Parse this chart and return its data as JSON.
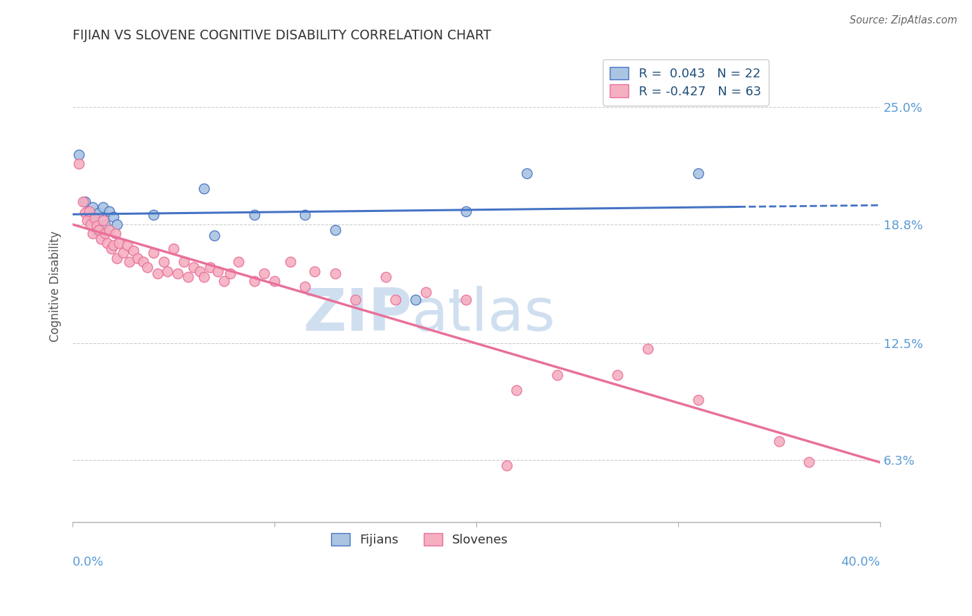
{
  "title": "FIJIAN VS SLOVENE COGNITIVE DISABILITY CORRELATION CHART",
  "source": "Source: ZipAtlas.com",
  "ylabel": "Cognitive Disability",
  "ytick_labels": [
    "6.3%",
    "12.5%",
    "18.8%",
    "25.0%"
  ],
  "ytick_values": [
    0.063,
    0.125,
    0.188,
    0.25
  ],
  "xlim": [
    0.0,
    0.4
  ],
  "ylim": [
    0.03,
    0.28
  ],
  "fijian_color": "#aac4e2",
  "slovene_color": "#f5afc0",
  "fijian_line_color": "#4472c4",
  "slovene_line_color": "#e8709a",
  "fijian_R": 0.043,
  "fijian_N": 22,
  "slovene_R": -0.427,
  "slovene_N": 63,
  "legend_text_color": "#1f4e79",
  "title_color": "#333333",
  "axis_label_color": "#5b9bd5",
  "grid_color": "#cccccc",
  "watermark_color": "#d0dff0",
  "fijian_points": [
    [
      0.003,
      0.225
    ],
    [
      0.006,
      0.2
    ],
    [
      0.008,
      0.193
    ],
    [
      0.01,
      0.197
    ],
    [
      0.011,
      0.19
    ],
    [
      0.012,
      0.185
    ],
    [
      0.013,
      0.194
    ],
    [
      0.015,
      0.197
    ],
    [
      0.016,
      0.188
    ],
    [
      0.018,
      0.195
    ],
    [
      0.02,
      0.192
    ],
    [
      0.022,
      0.188
    ],
    [
      0.04,
      0.193
    ],
    [
      0.065,
      0.207
    ],
    [
      0.07,
      0.182
    ],
    [
      0.09,
      0.193
    ],
    [
      0.115,
      0.193
    ],
    [
      0.13,
      0.185
    ],
    [
      0.17,
      0.148
    ],
    [
      0.195,
      0.195
    ],
    [
      0.225,
      0.215
    ],
    [
      0.31,
      0.215
    ]
  ],
  "slovene_points": [
    [
      0.003,
      0.22
    ],
    [
      0.005,
      0.2
    ],
    [
      0.006,
      0.194
    ],
    [
      0.007,
      0.19
    ],
    [
      0.008,
      0.195
    ],
    [
      0.009,
      0.188
    ],
    [
      0.01,
      0.183
    ],
    [
      0.011,
      0.191
    ],
    [
      0.012,
      0.187
    ],
    [
      0.013,
      0.185
    ],
    [
      0.014,
      0.18
    ],
    [
      0.015,
      0.19
    ],
    [
      0.016,
      0.183
    ],
    [
      0.017,
      0.178
    ],
    [
      0.018,
      0.185
    ],
    [
      0.019,
      0.175
    ],
    [
      0.02,
      0.177
    ],
    [
      0.021,
      0.183
    ],
    [
      0.022,
      0.17
    ],
    [
      0.023,
      0.178
    ],
    [
      0.025,
      0.173
    ],
    [
      0.027,
      0.177
    ],
    [
      0.028,
      0.168
    ],
    [
      0.03,
      0.174
    ],
    [
      0.032,
      0.17
    ],
    [
      0.035,
      0.168
    ],
    [
      0.037,
      0.165
    ],
    [
      0.04,
      0.173
    ],
    [
      0.042,
      0.162
    ],
    [
      0.045,
      0.168
    ],
    [
      0.047,
      0.163
    ],
    [
      0.05,
      0.175
    ],
    [
      0.052,
      0.162
    ],
    [
      0.055,
      0.168
    ],
    [
      0.057,
      0.16
    ],
    [
      0.06,
      0.165
    ],
    [
      0.063,
      0.163
    ],
    [
      0.065,
      0.16
    ],
    [
      0.068,
      0.165
    ],
    [
      0.072,
      0.163
    ],
    [
      0.075,
      0.158
    ],
    [
      0.078,
      0.162
    ],
    [
      0.082,
      0.168
    ],
    [
      0.09,
      0.158
    ],
    [
      0.095,
      0.162
    ],
    [
      0.1,
      0.158
    ],
    [
      0.108,
      0.168
    ],
    [
      0.115,
      0.155
    ],
    [
      0.12,
      0.163
    ],
    [
      0.13,
      0.162
    ],
    [
      0.14,
      0.148
    ],
    [
      0.155,
      0.16
    ],
    [
      0.16,
      0.148
    ],
    [
      0.175,
      0.152
    ],
    [
      0.195,
      0.148
    ],
    [
      0.22,
      0.1
    ],
    [
      0.24,
      0.108
    ],
    [
      0.27,
      0.108
    ],
    [
      0.285,
      0.122
    ],
    [
      0.31,
      0.095
    ],
    [
      0.35,
      0.073
    ],
    [
      0.365,
      0.062
    ],
    [
      0.215,
      0.06
    ]
  ]
}
